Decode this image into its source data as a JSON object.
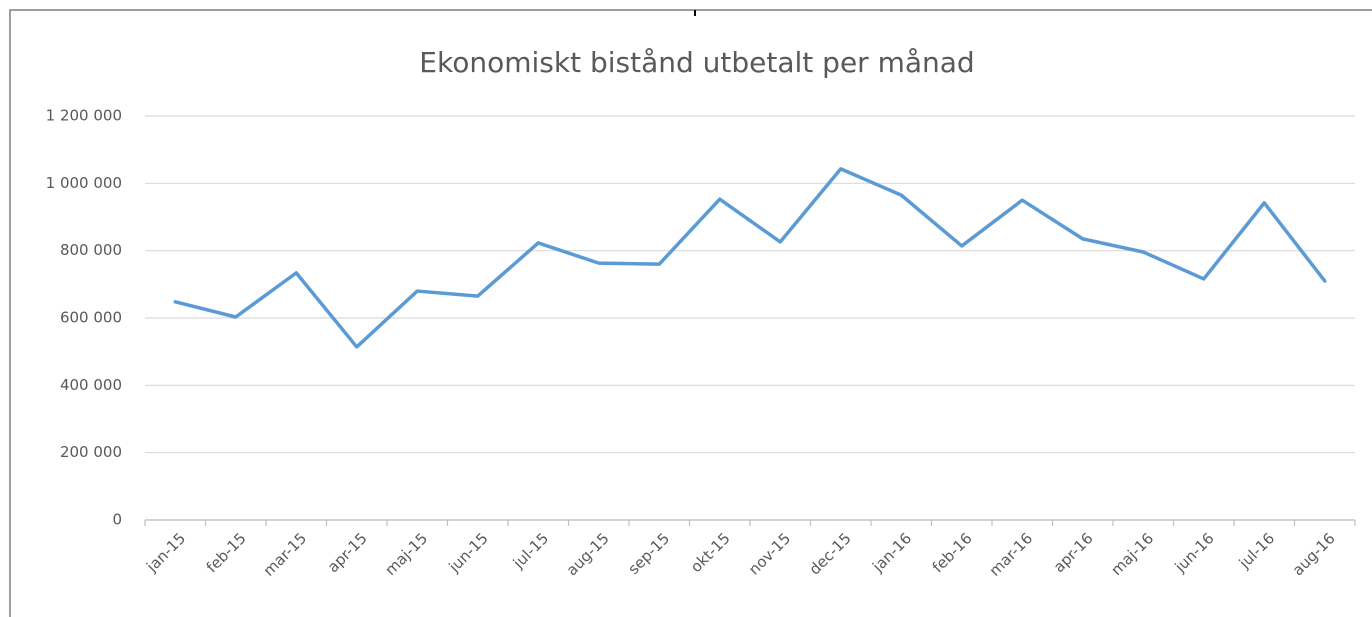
{
  "chart_data": {
    "type": "line",
    "title": "Ekonomiskt bistånd utbetalt per månad",
    "categories": [
      "jan-15",
      "feb-15",
      "mar-15",
      "apr-15",
      "maj-15",
      "jun-15",
      "jul-15",
      "aug-15",
      "sep-15",
      "okt-15",
      "nov-15",
      "dec-15",
      "jan-16",
      "feb-16",
      "mar-16",
      "apr-16",
      "maj-16",
      "jun-16",
      "jul-16",
      "aug-16"
    ],
    "values": [
      648000,
      603000,
      734000,
      514000,
      680000,
      665000,
      823000,
      763000,
      760000,
      953000,
      826000,
      1043000,
      965000,
      814000,
      950000,
      835000,
      796000,
      716000,
      942000,
      710000
    ],
    "color": "#5b9bd5",
    "ylim": [
      0,
      1200000
    ],
    "yticks": [
      0,
      {
        "value": 200000,
        "label": "200 000"
      },
      {
        "value": 400000,
        "label": "400 000"
      },
      {
        "value": 600000,
        "label": "600 000"
      },
      {
        "value": 800000,
        "label": "800 000"
      },
      {
        "value": 1000000,
        "label": "1 000 000"
      },
      {
        "value": 1200000,
        "label": "1 200 000"
      }
    ],
    "grid": true
  }
}
